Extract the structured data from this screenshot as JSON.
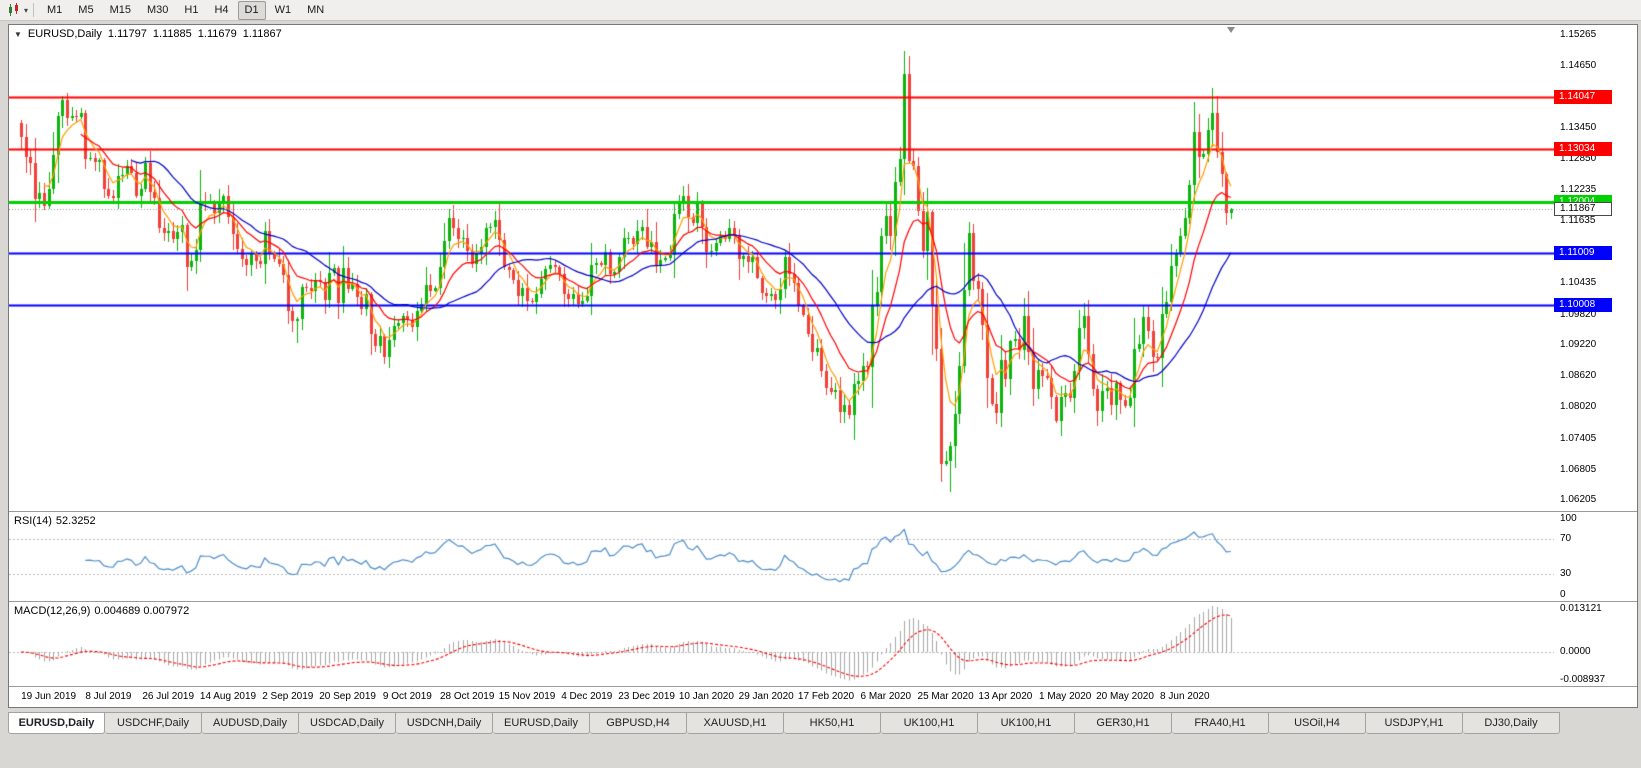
{
  "toolbar": {
    "chart_icon": "candlestick-chart-icon",
    "timeframes": [
      "M1",
      "M5",
      "M15",
      "M30",
      "H1",
      "H4",
      "D1",
      "W1",
      "MN"
    ],
    "active_timeframe": "D1"
  },
  "header": {
    "symbol": "EURUSD,Daily",
    "open": "1.11797",
    "high": "1.11885",
    "low": "1.11679",
    "close": "1.11867"
  },
  "rsi_panel": {
    "label": "RSI(14)",
    "value": "52.3252"
  },
  "macd_panel": {
    "label": "MACD(12,26,9)",
    "values": "0.004689 0.007972"
  },
  "tabs": {
    "active_index": 0,
    "items": [
      "EURUSD,Daily",
      "USDCHF,Daily",
      "AUDUSD,Daily",
      "USDCAD,Daily",
      "USDCNH,Daily",
      "EURUSD,Daily",
      "GBPUSD,H4",
      "XAUUSD,H1",
      "HK50,H1",
      "UK100,H1",
      "UK100,H1",
      "GER30,H1",
      "FRA40,H1",
      "USOil,H4",
      "USDJPY,H1",
      "DJ30,Daily"
    ]
  },
  "chart_data": {
    "type": "candlestick",
    "symbol": "EURUSD",
    "timeframe": "Daily",
    "y_min": 1.06,
    "y_max": 1.1545,
    "price_labels": [
      "1.15265",
      "1.14650",
      "1.13450",
      "1.12850",
      "1.12235",
      "1.11635",
      "1.10435",
      "1.09820",
      "1.09220",
      "1.08620",
      "1.08020",
      "1.07405",
      "1.06805",
      "1.06205"
    ],
    "hlines": [
      {
        "value": 1.14047,
        "label": "1.14047",
        "color": "#ff0000",
        "thickness": 2
      },
      {
        "value": 1.13034,
        "label": "1.13034",
        "color": "#ff0000",
        "thickness": 2
      },
      {
        "value": 1.12004,
        "label": "1.12004",
        "color": "#00cf00",
        "thickness": 3
      },
      {
        "value": 1.11009,
        "label": "1.11009",
        "color": "#0000ff",
        "thickness": 2
      },
      {
        "value": 1.10008,
        "label": "1.10008",
        "color": "#0000ff",
        "thickness": 2
      }
    ],
    "current_price": {
      "value": 1.11867,
      "label": "1.11867"
    },
    "colors": {
      "bull": "#0cb40c",
      "bear": "#f04038",
      "ma_fast": "#ff9d00",
      "ma_mid": "#ff0000",
      "ma_slow": "#0000c8",
      "rsi_line": "#4f8fca",
      "macd_hist": "#a8a8a8",
      "macd_signal": "#ff0000",
      "level_dash": "#bbbbbb",
      "current_dash": "#999999"
    },
    "moving_averages": [
      {
        "method": "ema",
        "period": 5,
        "color_key": "ma_fast"
      },
      {
        "method": "ema",
        "period": 13,
        "color_key": "ma_mid"
      },
      {
        "method": "sma",
        "period": 24,
        "color_key": "ma_slow"
      }
    ],
    "rsi": {
      "period": 14,
      "levels": [
        100,
        70,
        30,
        0
      ]
    },
    "macd": {
      "fast": 12,
      "slow": 26,
      "signal_period": 9,
      "axis_max": 0.013121,
      "axis_min": -0.008937,
      "axis_labels": [
        "0.013121",
        "0.0000",
        "-0.008937"
      ]
    },
    "x_labels": [
      "19 Jun 2019",
      "8 Jul 2019",
      "26 Jul 2019",
      "14 Aug 2019",
      "2 Sep 2019",
      "20 Sep 2019",
      "9 Oct 2019",
      "28 Oct 2019",
      "15 Nov 2019",
      "4 Dec 2019",
      "23 Dec 2019",
      "10 Jan 2020",
      "29 Jan 2020",
      "17 Feb 2020",
      "6 Mar 2020",
      "25 Mar 2020",
      "13 Apr 2020",
      "1 May 2020",
      "20 May 2020",
      "8 Jun 2020"
    ],
    "x_label_indices": [
      6,
      19,
      32,
      45,
      58,
      71,
      84,
      97,
      110,
      123,
      136,
      149,
      162,
      175,
      188,
      201,
      214,
      227,
      240,
      253
    ],
    "closes": [
      1.1328,
      1.1288,
      1.1276,
      1.1207,
      1.1218,
      1.1194,
      1.1227,
      1.1293,
      1.1369,
      1.1399,
      1.1365,
      1.1369,
      1.1367,
      1.1373,
      1.1285,
      1.1287,
      1.1278,
      1.1282,
      1.1226,
      1.1213,
      1.1208,
      1.1252,
      1.1254,
      1.127,
      1.1258,
      1.1212,
      1.1226,
      1.1277,
      1.1221,
      1.1208,
      1.1151,
      1.114,
      1.1145,
      1.1128,
      1.1143,
      1.1156,
      1.1075,
      1.1086,
      1.1108,
      1.1203,
      1.12,
      1.12,
      1.118,
      1.12,
      1.1213,
      1.1171,
      1.1139,
      1.1109,
      1.109,
      1.1078,
      1.11,
      1.1086,
      1.1081,
      1.1144,
      1.1101,
      1.109,
      1.108,
      1.1058,
      1.0989,
      1.097,
      1.0973,
      1.1035,
      1.1034,
      1.1028,
      1.1049,
      1.1045,
      1.1011,
      1.1063,
      1.1073,
      1.1004,
      1.1072,
      1.1031,
      1.1042,
      1.1017,
      1.0993,
      1.1021,
      1.0944,
      1.0921,
      1.094,
      1.0899,
      1.0932,
      1.0959,
      1.0966,
      1.0979,
      1.0972,
      1.0957,
      1.0989,
      1.1003,
      1.104,
      1.1028,
      1.1034,
      1.1074,
      1.1125,
      1.117,
      1.115,
      1.1128,
      1.1131,
      1.1105,
      1.108,
      1.1099,
      1.1113,
      1.115,
      1.1152,
      1.1166,
      1.1127,
      1.1074,
      1.1068,
      1.1049,
      1.1018,
      1.1034,
      1.1009,
      1.1006,
      1.1022,
      1.1051,
      1.1071,
      1.1078,
      1.1074,
      1.106,
      1.1021,
      1.1013,
      1.1022,
      1.1003,
      1.1008,
      1.1018,
      1.1079,
      1.1082,
      1.1078,
      1.1104,
      1.106,
      1.1065,
      1.1093,
      1.113,
      1.113,
      1.112,
      1.1145,
      1.1152,
      1.1114,
      1.1123,
      1.1078,
      1.1088,
      1.1091,
      1.1098,
      1.1177,
      1.1199,
      1.1213,
      1.1172,
      1.116,
      1.1196,
      1.1153,
      1.1104,
      1.1105,
      1.1122,
      1.1134,
      1.1128,
      1.115,
      1.1136,
      1.109,
      1.1095,
      1.1084,
      1.1093,
      1.1054,
      1.1023,
      1.1019,
      1.1022,
      1.1011,
      1.1032,
      1.1093,
      1.106,
      1.1044,
      1.0999,
      1.0982,
      1.0945,
      1.091,
      1.0917,
      1.0873,
      1.084,
      1.0831,
      1.0836,
      1.0792,
      1.0806,
      1.0786,
      1.0846,
      1.0853,
      1.0881,
      1.088,
      1.0999,
      1.1026,
      1.1134,
      1.1173,
      1.1134,
      1.124,
      1.1284,
      1.145,
      1.1281,
      1.1271,
      1.1184,
      1.1106,
      1.1181,
      1.0999,
      1.0915,
      1.0692,
      1.0698,
      1.0726,
      1.0789,
      1.0882,
      1.103,
      1.114,
      1.1047,
      1.1031,
      1.0962,
      1.0859,
      1.0808,
      1.0791,
      1.0893,
      1.0857,
      1.093,
      1.0935,
      1.0913,
      1.098,
      1.091,
      1.0838,
      1.0875,
      1.0863,
      1.0858,
      1.0822,
      1.0775,
      1.0821,
      1.083,
      1.082,
      1.0873,
      1.0955,
      1.098,
      1.0906,
      1.0838,
      1.0795,
      1.0834,
      1.0839,
      1.0807,
      1.0848,
      1.0816,
      1.0805,
      1.082,
      1.0915,
      1.0924,
      1.0978,
      1.095,
      1.09,
      1.0898,
      1.0983,
      1.1007,
      1.1076,
      1.1101,
      1.1134,
      1.117,
      1.1234,
      1.1337,
      1.1289,
      1.1294,
      1.134,
      1.1373,
      1.1298,
      1.1256,
      1.118,
      1.11867
    ],
    "overrides": {
      "10": {
        "h": 1.1412
      },
      "36": {
        "l": 1.1027
      },
      "58": {
        "l": 1.0963
      },
      "60": {
        "l": 1.0926
      },
      "79": {
        "l": 1.0885
      },
      "80": {
        "l": 1.0879
      },
      "180": {
        "l": 1.0778
      },
      "192": {
        "h": 1.1495
      },
      "200": {
        "l": 1.0656
      },
      "202": {
        "l": 1.0636
      },
      "259": {
        "h": 1.1422
      },
      "263": {
        "o": 1.11797,
        "h": 1.11885,
        "l": 1.11679,
        "c": 1.11867
      }
    }
  }
}
